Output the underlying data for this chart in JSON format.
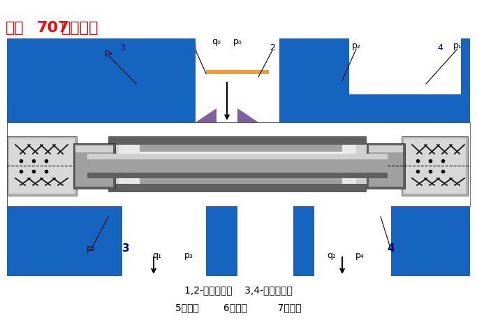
{
  "bg_color": "#1565c0",
  "body_color": "#1565c0",
  "white_color": "#ffffff",
  "gray_light": "#d0d0d0",
  "gray_mid": "#a0a0a0",
  "gray_dark": "#606060",
  "gray_darker": "#404040",
  "orange_color": "#e8a040",
  "purple_color": "#8060a0",
  "title_red": "#ff0000",
  "label_blue": "#000080",
  "label_black": "#000000",
  "fig_width": 6.83,
  "fig_height": 4.75,
  "title_text": "化工707剪辑制作",
  "legend_line1": "1,2-固定节油孔    3,4-可变节流孔",
  "legend_line2": "5－阀体        6－阀心          7－弹簧"
}
